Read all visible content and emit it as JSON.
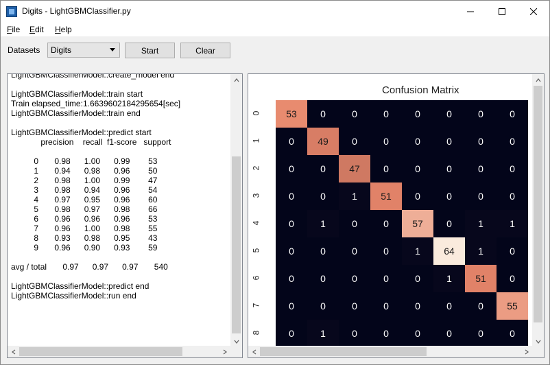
{
  "window": {
    "title": "Digits - LightGBMClassifier.py"
  },
  "menu": [
    "File",
    "Edit",
    "Help"
  ],
  "toolbar": {
    "datasets_label": "Datasets",
    "dataset_selected": "Digits",
    "start_label": "Start",
    "clear_label": "Clear"
  },
  "log_lines": [
    "LightGBMClassifierModel::create_model end",
    "",
    "LightGBMClassifierModel::train start",
    "Train elapsed_time:1.6639602184295654[sec]",
    "LightGBMClassifierModel::train end",
    "",
    "LightGBMClassifierModel::predict start",
    "             precision    recall  f1-score   support",
    "",
    "          0       0.98      1.00      0.99        53",
    "          1       0.94      0.98      0.96        50",
    "          2       0.98      1.00      0.99        47",
    "          3       0.98      0.94      0.96        54",
    "          4       0.97      0.95      0.96        60",
    "          5       0.98      0.97      0.98        66",
    "          6       0.96      0.96      0.96        53",
    "          7       0.96      1.00      0.98        55",
    "          8       0.93      0.98      0.95        43",
    "          9       0.96      0.90      0.93        59",
    "",
    "avg / total       0.97      0.97      0.97       540",
    "",
    "LightGBMClassifierModel::predict end",
    "LightGBMClassifierModel::run end"
  ],
  "plot": {
    "title": "Confusion Matrix",
    "row_labels": [
      "0",
      "1",
      "2",
      "3",
      "4",
      "5",
      "6",
      "7",
      "8"
    ],
    "matrix": [
      [
        53,
        0,
        0,
        0,
        0,
        0,
        0,
        0
      ],
      [
        0,
        49,
        0,
        0,
        0,
        0,
        0,
        0
      ],
      [
        0,
        0,
        47,
        0,
        0,
        0,
        0,
        0
      ],
      [
        0,
        0,
        1,
        51,
        0,
        0,
        0,
        0
      ],
      [
        0,
        1,
        0,
        0,
        57,
        0,
        1,
        1
      ],
      [
        0,
        0,
        0,
        0,
        1,
        64,
        1,
        0
      ],
      [
        0,
        0,
        0,
        0,
        0,
        1,
        51,
        0
      ],
      [
        0,
        0,
        0,
        0,
        0,
        0,
        0,
        55
      ],
      [
        0,
        1,
        0,
        0,
        0,
        0,
        0,
        0
      ]
    ],
    "colors": {
      "low": "#03051a",
      "mid": "#e7866a",
      "high": "#faebdd"
    }
  }
}
